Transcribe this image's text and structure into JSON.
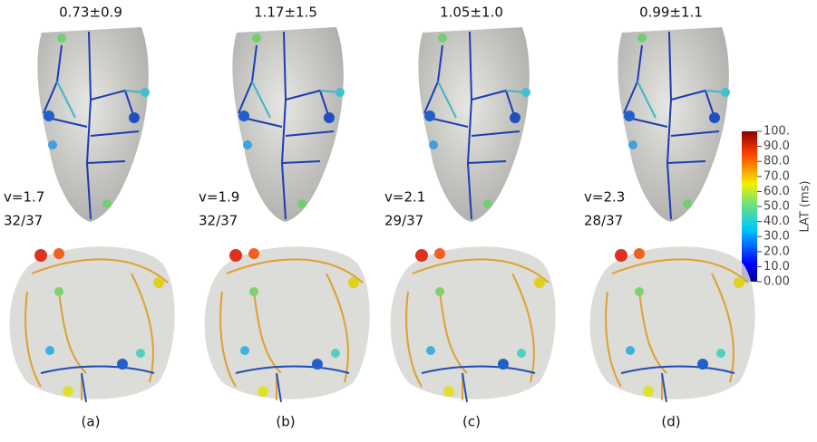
{
  "panels": [
    {
      "title": "0.73±0.9",
      "velocity": "v=1.7",
      "count": "32/37",
      "label": "(a)"
    },
    {
      "title": "1.17±1.5",
      "velocity": "v=1.9",
      "count": "32/37",
      "label": "(b)"
    },
    {
      "title": "1.05±1.0",
      "velocity": "v=2.1",
      "count": "29/37",
      "label": "(c)"
    },
    {
      "title": "0.99±1.1",
      "velocity": "v=2.3",
      "count": "28/37",
      "label": "(d)"
    }
  ],
  "colorbar": {
    "title": "LAT (ms)",
    "lim": [
      0,
      100
    ],
    "ticks": [
      {
        "value": 100,
        "label": "100."
      },
      {
        "value": 90,
        "label": "90.0"
      },
      {
        "value": 80,
        "label": "80.0"
      },
      {
        "value": 70,
        "label": "70.0"
      },
      {
        "value": 60,
        "label": "60.0"
      },
      {
        "value": 50,
        "label": "50.0"
      },
      {
        "value": 40,
        "label": "40.0"
      },
      {
        "value": 30,
        "label": "30.0"
      },
      {
        "value": 20,
        "label": "20.0"
      },
      {
        "value": 10,
        "label": "10.0"
      },
      {
        "value": 0,
        "label": "0.00"
      }
    ]
  }
}
